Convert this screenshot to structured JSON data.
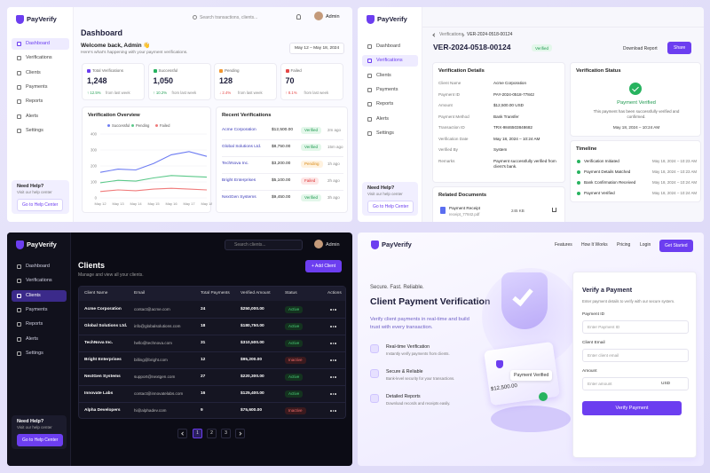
{
  "brand": "PayVerify",
  "nav": [
    "Dashboard",
    "Verifications",
    "Clients",
    "Payments",
    "Reports",
    "Alerts",
    "Settings"
  ],
  "help": {
    "title": "Need Help?",
    "text": "Visit our help center",
    "button": "Go to Help Center"
  },
  "user": "Admin",
  "dashboard": {
    "search": "Search transactions, clients...",
    "title": "Dashboard",
    "welcome": "Welcome back, Admin 👋",
    "subtitle": "Here's what's happening with your payment verifications.",
    "date_range": "May 12 – May 18, 2024",
    "stats": [
      {
        "label": "Total Verifications",
        "value": "1,248",
        "change": "↑ 12.5%",
        "note": "from last week"
      },
      {
        "label": "Successful",
        "value": "1,050",
        "change": "↑ 10.2%",
        "note": "from last week"
      },
      {
        "label": "Pending",
        "value": "128",
        "change": "↓ 2.4%",
        "note": "from last week"
      },
      {
        "label": "Failed",
        "value": "70",
        "change": "↑ 8.1%",
        "note": "from last week"
      }
    ],
    "chart": {
      "type": "line",
      "title": "Verification Overview",
      "categories": [
        "May 12",
        "May 13",
        "May 14",
        "May 15",
        "May 16",
        "May 17",
        "May 18"
      ],
      "series": [
        {
          "name": "Successful",
          "color": "#6d7cf2",
          "values": [
            160,
            180,
            175,
            215,
            270,
            290,
            260
          ]
        },
        {
          "name": "Pending",
          "color": "#5cc98a",
          "values": [
            95,
            110,
            105,
            125,
            140,
            135,
            130
          ]
        },
        {
          "name": "Failed",
          "color": "#f07b7b",
          "values": [
            40,
            50,
            45,
            55,
            60,
            55,
            50
          ]
        }
      ],
      "ylim": [
        0,
        400
      ],
      "yticks": [
        0,
        100,
        200,
        300,
        400
      ]
    },
    "recent": {
      "title": "Recent Verifications",
      "rows": [
        [
          "Acme Corporation",
          "$12,500.00",
          "Verified",
          "2m ago"
        ],
        [
          "Global Solutions Ltd.",
          "$8,750.00",
          "Verified",
          "15m ago"
        ],
        [
          "TechNova Inc.",
          "$3,200.00",
          "Pending",
          "1h ago"
        ],
        [
          "Bright Enterprises",
          "$5,100.00",
          "Failed",
          "2h ago"
        ],
        [
          "NextGen Systems",
          "$9,450.00",
          "Verified",
          "3h ago"
        ]
      ]
    }
  },
  "detail": {
    "breadcrumb": [
      "Verifications",
      "VER-2024-0518-00124"
    ],
    "title": "VER-2024-0518-00124",
    "badge": "Verified",
    "buttons": [
      "Download Report",
      "Share"
    ],
    "details_title": "Verification Details",
    "fields": [
      [
        "Client Name",
        "Acme Corporation"
      ],
      [
        "Payment ID",
        "PAY-2024-0518-77842"
      ],
      [
        "Amount",
        "$12,500.00 USD"
      ],
      [
        "Payment Method",
        "Bank Transfer"
      ],
      [
        "Transaction ID",
        "TRX-9846503848682"
      ],
      [
        "Verification Date",
        "May 18, 2024 – 10:24 AM"
      ],
      [
        "Verified By",
        "System"
      ],
      [
        "Remarks",
        "Payment successfully verified from client's bank."
      ]
    ],
    "status_title": "Verification Status",
    "status": "Payment Verified",
    "status_text": "This payment has been successfully verified and confirmed.",
    "status_date": "May 18, 2024 – 10:24 AM",
    "timeline_title": "Timeline",
    "timeline": [
      [
        "Verification Initiated",
        "May 18, 2024 – 10:23 AM"
      ],
      [
        "Payment Details Matched",
        "May 18, 2024 – 10:23 AM"
      ],
      [
        "Bank Confirmation Received",
        "May 18, 2024 – 10:24 AM"
      ],
      [
        "Payment Verified",
        "May 18, 2024 – 10:24 AM"
      ]
    ],
    "docs_title": "Related Documents",
    "doc": {
      "name": "Payment Receipt",
      "file": "receipt_77842.pdf",
      "size": "245 KB"
    }
  },
  "clients": {
    "search": "Search clients...",
    "title": "Clients",
    "subtitle": "Manage and view all your clients.",
    "add": "+ Add Client",
    "columns": [
      "Client Name",
      "Email",
      "Total Payments",
      "Verified Amount",
      "Status",
      "Actions"
    ],
    "rows": [
      [
        "Acme Corporation",
        "contact@acme.com",
        "24",
        "$250,000.00",
        "Active"
      ],
      [
        "Global Solutions Ltd.",
        "info@globalsolutions.com",
        "18",
        "$180,750.00",
        "Active"
      ],
      [
        "TechNova Inc.",
        "hello@technova.com",
        "31",
        "$310,500.00",
        "Active"
      ],
      [
        "Bright Enterprises",
        "billing@bright.com",
        "12",
        "$95,200.00",
        "Inactive"
      ],
      [
        "NextGen Systems",
        "support@nextgen.com",
        "27",
        "$220,300.00",
        "Active"
      ],
      [
        "Innovate Labs",
        "contact@innovatelabs.com",
        "16",
        "$125,400.00",
        "Active"
      ],
      [
        "Alpha Developers",
        "hi@alphadev.com",
        "9",
        "$75,600.00",
        "Inactive"
      ]
    ],
    "pages": [
      "1",
      "2",
      "3"
    ]
  },
  "landing": {
    "nav": [
      "Features",
      "How It Works",
      "Pricing",
      "Login"
    ],
    "cta": "Get Started",
    "kicker": "Secure. Fast. Reliable.",
    "title": "Client Payment Verification",
    "lead": "Verify client payments in real-time and build trust with every transaction.",
    "features": [
      [
        "Real-time Verification",
        "Instantly verify payments from clients."
      ],
      [
        "Secure & Reliable",
        "Bank-level security for your transactions."
      ],
      [
        "Detailed Reports",
        "Download records and receipts easily."
      ]
    ],
    "illus_card": "Payment Verified",
    "illus_amount": "$12,500.00",
    "form": {
      "title": "Verify a Payment",
      "subtitle": "Enter payment details to verify with our secure system.",
      "fields": [
        [
          "Payment ID",
          "Enter Payment ID"
        ],
        [
          "Client Email",
          "Enter client email"
        ],
        [
          "Amount",
          "Enter amount"
        ]
      ],
      "currency": "USD",
      "button": "Verify Payment"
    }
  }
}
